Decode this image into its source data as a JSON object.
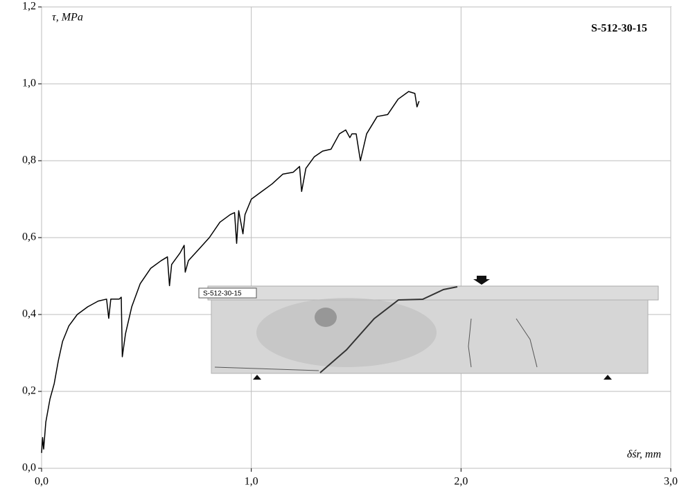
{
  "chart_data": {
    "type": "line",
    "title": "S-512-30-15",
    "y_label": "τ, MPa",
    "x_label": "δśr, mm",
    "photo_label": "S-512-30-15",
    "xlim": [
      0,
      3
    ],
    "ylim": [
      0,
      1.2
    ],
    "xticks": [
      {
        "value": 0,
        "label": "0,0"
      },
      {
        "value": 1,
        "label": "1,0"
      },
      {
        "value": 2,
        "label": "2,0"
      },
      {
        "value": 3,
        "label": "3,0"
      }
    ],
    "yticks": [
      {
        "value": 0,
        "label": "0,0"
      },
      {
        "value": 0.2,
        "label": "0,2"
      },
      {
        "value": 0.4,
        "label": "0,4"
      },
      {
        "value": 0.6,
        "label": "0,6"
      },
      {
        "value": 0.8,
        "label": "0,8"
      },
      {
        "value": 1,
        "label": "1,0"
      },
      {
        "value": 1.2,
        "label": "1,2"
      }
    ],
    "grid": true,
    "color": "#000000",
    "x": [
      0,
      0.005,
      0.01,
      0.02,
      0.04,
      0.06,
      0.08,
      0.1,
      0.13,
      0.17,
      0.22,
      0.27,
      0.31,
      0.32,
      0.33,
      0.37,
      0.38,
      0.385,
      0.4,
      0.43,
      0.47,
      0.52,
      0.57,
      0.6,
      0.61,
      0.62,
      0.66,
      0.68,
      0.685,
      0.7,
      0.75,
      0.8,
      0.85,
      0.9,
      0.92,
      0.93,
      0.94,
      0.96,
      0.97,
      1.0,
      1.05,
      1.1,
      1.15,
      1.2,
      1.23,
      1.24,
      1.26,
      1.3,
      1.34,
      1.38,
      1.42,
      1.45,
      1.47,
      1.48,
      1.5,
      1.52,
      1.55,
      1.6,
      1.65,
      1.7,
      1.75,
      1.78,
      1.79,
      1.8
    ],
    "values": [
      0.04,
      0.08,
      0.05,
      0.12,
      0.18,
      0.22,
      0.28,
      0.33,
      0.37,
      0.4,
      0.42,
      0.435,
      0.44,
      0.39,
      0.44,
      0.44,
      0.445,
      0.29,
      0.35,
      0.42,
      0.48,
      0.52,
      0.54,
      0.55,
      0.475,
      0.53,
      0.56,
      0.58,
      0.51,
      0.54,
      0.57,
      0.6,
      0.64,
      0.66,
      0.665,
      0.585,
      0.67,
      0.61,
      0.66,
      0.7,
      0.72,
      0.74,
      0.765,
      0.77,
      0.785,
      0.72,
      0.78,
      0.81,
      0.825,
      0.83,
      0.87,
      0.88,
      0.86,
      0.87,
      0.87,
      0.8,
      0.87,
      0.915,
      0.92,
      0.96,
      0.98,
      0.975,
      0.94,
      0.955
    ]
  }
}
